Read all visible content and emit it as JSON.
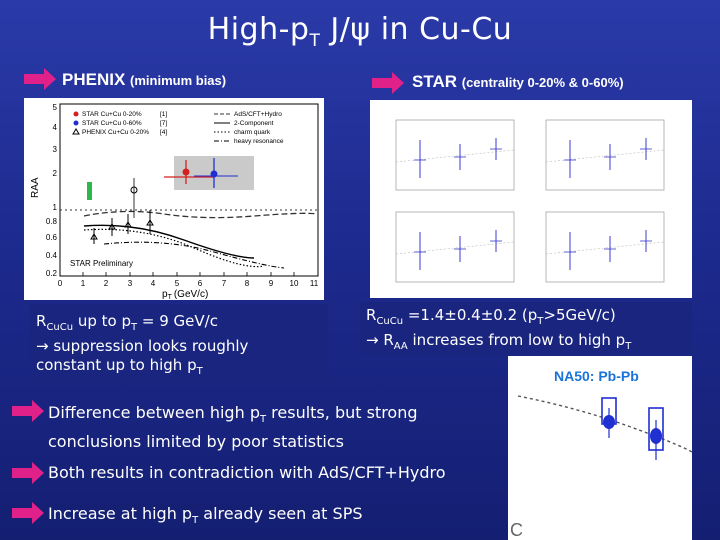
{
  "slide": {
    "title_main": "High-p",
    "title_sub": "T",
    "title_rest": " J/ψ in Cu-Cu"
  },
  "phenix": {
    "header": "PHENIX",
    "header_small": "(minimum bias)",
    "legend": [
      "STAR Cu+Cu 0-20%",
      "STAR Cu+Cu 0-60%",
      "PHENIX Cu+Cu 0-20%"
    ],
    "legend_refs": [
      "[1]",
      "[7]",
      "[4]"
    ],
    "model_legend": [
      "AdS/CFT+Hydro",
      "2-Component",
      "charm quark",
      "heavy resonance"
    ],
    "ylabel": "RAA",
    "xlabel_main": "p",
    "xlabel_sub": "T",
    "xlabel_unit": "(GeV/c)",
    "preliminary": "STAR Preliminary",
    "yticks": [
      "0.2",
      "0.4",
      "0.6",
      "0.8",
      "1",
      "2",
      "3",
      "4",
      "5"
    ],
    "xticks": [
      "0",
      "1",
      "2",
      "3",
      "4",
      "5",
      "6",
      "7",
      "8",
      "9",
      "10",
      "11"
    ],
    "caption_line1_a": "R",
    "caption_line1_sub": "CuCu",
    "caption_line1_b": " up to p",
    "caption_line1_sub2": "T",
    "caption_line1_c": " = 9 GeV/c",
    "caption_line2": " suppression looks roughly",
    "caption_line3_a": "constant up to high p",
    "caption_line3_sub": "T"
  },
  "star": {
    "header": "STAR",
    "header_small": "(centrality 0-20% & 0-60%)",
    "caption_line1_a": "R",
    "caption_line1_sub": "CuCu",
    "caption_line1_b": " =1.4±0.4±0.2 (p",
    "caption_line1_sub2": "T",
    "caption_line1_c": ">5GeV/c)",
    "caption_line2_a": " R",
    "caption_line2_sub": "AA",
    "caption_line2_b": " increases from low to high p",
    "caption_line2_sub2": "T"
  },
  "na50": {
    "label": "NA50: Pb-Pb"
  },
  "bullets": [
    {
      "a": "Difference between high p",
      "sub": "T",
      "b": " results, but strong",
      "line2": "conclusions limited by poor statistics"
    },
    {
      "a": "Both results in contradiction with AdS/CFT+Hydro",
      "sub": "",
      "b": "",
      "line2": ""
    },
    {
      "a": "Increase at high p",
      "sub": "T",
      "b": " already seen at SPS",
      "line2": ""
    }
  ],
  "colors": {
    "arrow": "#e0218a",
    "na50_label": "#1a73d9",
    "star_red": "#d42020",
    "star_blue": "#1f2fd0"
  }
}
